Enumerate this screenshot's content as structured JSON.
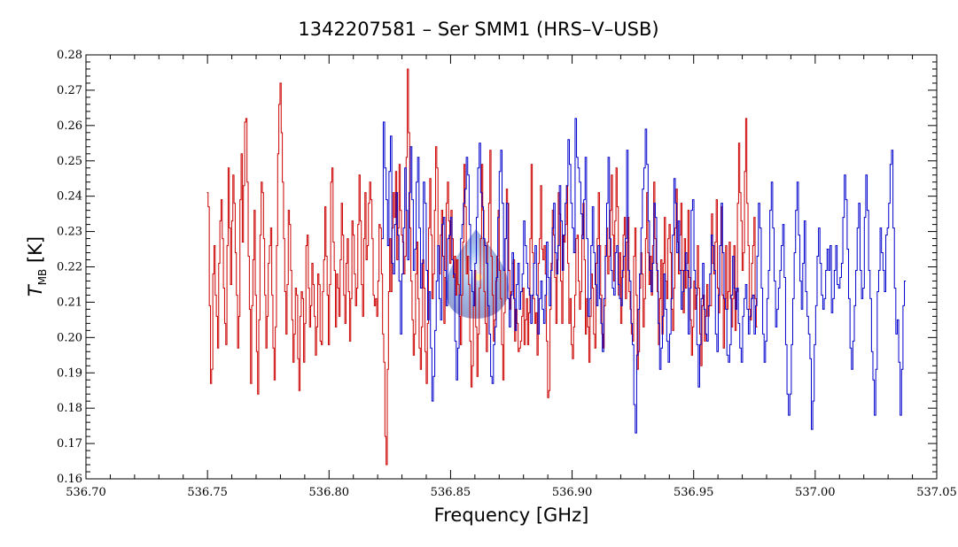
{
  "chart_data": {
    "type": "line",
    "title": "1342207581 – Ser SMM1 (HRS–V–USB)",
    "xlabel": "Frequency [GHz]",
    "ylabel": {
      "symbol": "T",
      "subscript": "MB",
      "unit": " [K]"
    },
    "xlim": [
      536.7,
      537.05
    ],
    "ylim": [
      0.16,
      0.28
    ],
    "xticks": [
      "536.70",
      "536.75",
      "536.80",
      "536.85",
      "536.90",
      "536.95",
      "537.00",
      "537.05"
    ],
    "yticks": [
      "0.16",
      "0.17",
      "0.18",
      "0.19",
      "0.20",
      "0.21",
      "0.22",
      "0.23",
      "0.24",
      "0.25",
      "0.26",
      "0.27",
      "0.28"
    ],
    "grid": false,
    "legend": "none",
    "step": true,
    "series": [
      {
        "color": "#cc0000",
        "x_start": 536.75,
        "x_end": 536.976,
        "values": [
          0.241,
          0.237,
          0.209,
          0.187,
          0.191,
          0.218,
          0.226,
          0.212,
          0.206,
          0.197,
          0.221,
          0.233,
          0.239,
          0.228,
          0.214,
          0.204,
          0.198,
          0.226,
          0.248,
          0.231,
          0.215,
          0.233,
          0.246,
          0.238,
          0.224,
          0.212,
          0.197,
          0.206,
          0.239,
          0.252,
          0.227,
          0.243,
          0.261,
          0.262,
          0.244,
          0.223,
          0.208,
          0.187,
          0.209,
          0.222,
          0.236,
          0.212,
          0.196,
          0.184,
          0.205,
          0.229,
          0.244,
          0.241,
          0.228,
          0.212,
          0.197,
          0.206,
          0.221,
          0.226,
          0.231,
          0.212,
          0.197,
          0.188,
          0.203,
          0.226,
          0.252,
          0.266,
          0.272,
          0.258,
          0.244,
          0.228,
          0.213,
          0.201,
          0.215,
          0.236,
          0.232,
          0.219,
          0.205,
          0.193,
          0.201,
          0.214,
          0.212,
          0.194,
          0.185,
          0.206,
          0.213,
          0.211,
          0.193,
          0.204,
          0.226,
          0.229,
          0.214,
          0.203,
          0.209,
          0.221,
          0.215,
          0.206,
          0.195,
          0.203,
          0.218,
          0.215,
          0.199,
          0.198,
          0.213,
          0.222,
          0.237,
          0.223,
          0.212,
          0.198,
          0.215,
          0.244,
          0.248,
          0.227,
          0.219,
          0.203,
          0.218,
          0.214,
          0.206,
          0.222,
          0.238,
          0.229,
          0.212,
          0.204,
          0.221,
          0.228,
          0.213,
          0.199,
          0.211,
          0.233,
          0.229,
          0.218,
          0.209,
          0.214,
          0.232,
          0.246,
          0.233,
          0.215,
          0.206,
          0.228,
          0.241,
          0.222,
          0.226,
          0.238,
          0.244,
          0.239,
          0.228,
          0.212,
          0.209,
          0.211,
          0.206,
          0.216,
          0.232,
          0.231,
          0.218,
          0.201,
          0.193,
          0.172,
          0.164,
          0.191,
          0.213,
          0.228,
          0.213,
          0.231,
          0.241,
          0.234,
          0.247,
          0.222,
          0.231,
          0.249,
          0.236,
          0.229,
          0.227,
          0.218,
          0.223,
          0.251,
          0.276,
          0.258,
          0.231,
          0.216,
          0.205,
          0.195,
          0.201,
          0.218,
          0.227,
          0.211,
          0.197,
          0.191,
          0.203,
          0.222,
          0.214,
          0.196,
          0.187,
          0.204,
          0.231,
          0.245,
          0.229,
          0.211,
          0.218,
          0.236,
          0.254,
          0.248,
          0.226,
          0.218,
          0.229,
          0.236,
          0.223,
          0.204,
          0.217,
          0.238,
          0.244,
          0.233,
          0.221,
          0.236,
          0.228,
          0.217,
          0.223,
          0.212,
          0.222,
          0.215,
          0.206,
          0.198,
          0.212,
          0.227,
          0.249,
          0.237,
          0.218,
          0.223,
          0.215,
          0.199,
          0.186,
          0.192,
          0.209,
          0.219,
          0.203,
          0.189,
          0.201,
          0.214,
          0.228,
          0.249,
          0.236,
          0.213,
          0.204,
          0.196,
          0.227,
          0.238,
          0.253,
          0.223,
          0.212,
          0.199,
          0.205,
          0.216,
          0.223,
          0.236,
          0.219,
          0.211,
          0.198,
          0.188,
          0.207,
          0.228,
          0.242,
          0.238,
          0.219,
          0.208,
          0.213,
          0.221,
          0.222,
          0.199,
          0.208,
          0.204,
          0.196,
          0.197,
          0.199,
          0.206,
          0.214,
          0.198,
          0.205,
          0.211,
          0.198,
          0.207,
          0.228,
          0.249,
          0.224,
          0.211,
          0.204,
          0.207,
          0.195,
          0.221,
          0.228,
          0.243,
          0.225,
          0.222,
          0.226,
          0.218,
          0.199,
          0.183,
          0.185,
          0.208,
          0.221,
          0.236,
          0.229,
          0.217,
          0.204,
          0.222,
          0.241,
          0.235,
          0.216,
          0.204,
          0.229,
          0.227,
          0.232,
          0.243,
          0.221,
          0.204,
          0.211,
          0.198,
          0.194,
          0.203,
          0.212,
          0.228,
          0.229,
          0.216,
          0.208,
          0.213,
          0.229,
          0.238,
          0.222,
          0.201,
          0.211,
          0.203,
          0.193,
          0.206,
          0.218,
          0.214,
          0.201,
          0.197,
          0.221,
          0.228,
          0.241,
          0.226,
          0.212,
          0.201,
          0.197,
          0.209,
          0.226,
          0.231,
          0.218,
          0.223,
          0.236,
          0.246,
          0.229,
          0.216,
          0.233,
          0.248,
          0.237,
          0.212,
          0.224,
          0.204,
          0.217,
          0.229,
          0.234,
          0.211,
          0.227,
          0.234,
          0.213,
          0.208,
          0.201,
          0.199,
          0.223,
          0.231,
          0.212,
          0.191,
          0.196,
          0.214,
          0.224,
          0.218,
          0.203,
          0.211,
          0.228,
          0.241,
          0.224,
          0.215,
          0.223,
          0.212,
          0.226,
          0.244,
          0.228,
          0.221,
          0.213,
          0.198,
          0.211,
          0.222,
          0.201,
          0.221,
          0.234,
          0.216,
          0.211,
          0.228,
          0.232,
          0.224,
          0.208,
          0.202,
          0.214,
          0.231,
          0.242,
          0.227,
          0.218,
          0.229,
          0.238,
          0.219,
          0.207,
          0.228,
          0.214,
          0.221,
          0.236,
          0.217,
          0.205,
          0.195,
          0.203,
          0.216,
          0.208,
          0.212,
          0.226,
          0.214,
          0.201,
          0.192,
          0.209,
          0.212,
          0.199,
          0.206,
          0.215,
          0.206,
          0.209,
          0.209,
          0.235,
          0.221,
          0.218,
          0.227,
          0.239,
          0.214,
          0.207,
          0.226,
          0.237,
          0.212,
          0.197,
          0.211,
          0.226,
          0.208,
          0.213,
          0.227,
          0.211,
          0.203,
          0.211,
          0.226,
          0.202,
          0.213,
          0.238,
          0.255,
          0.241,
          0.233,
          0.219,
          0.224,
          0.247,
          0.262,
          0.238,
          0.226,
          0.208,
          0.205,
          0.221,
          0.226,
          0.234,
          0.211,
          0.203
        ]
      },
      {
        "color": "#0000cc",
        "x_start": 536.822,
        "x_end": 537.037,
        "values": [
          0.228,
          0.261,
          0.248,
          0.239,
          0.226,
          0.247,
          0.257,
          0.221,
          0.218,
          0.232,
          0.241,
          0.229,
          0.216,
          0.201,
          0.218,
          0.231,
          0.248,
          0.236,
          0.222,
          0.241,
          0.254,
          0.239,
          0.219,
          0.225,
          0.244,
          0.251,
          0.231,
          0.214,
          0.221,
          0.244,
          0.238,
          0.219,
          0.205,
          0.213,
          0.197,
          0.182,
          0.189,
          0.202,
          0.216,
          0.226,
          0.211,
          0.205,
          0.232,
          0.234,
          0.219,
          0.209,
          0.228,
          0.229,
          0.234,
          0.222,
          0.218,
          0.199,
          0.188,
          0.197,
          0.212,
          0.228,
          0.232,
          0.238,
          0.242,
          0.251,
          0.246,
          0.232,
          0.219,
          0.213,
          0.209,
          0.221,
          0.234,
          0.248,
          0.255,
          0.241,
          0.237,
          0.228,
          0.226,
          0.221,
          0.209,
          0.201,
          0.189,
          0.187,
          0.198,
          0.203,
          0.217,
          0.234,
          0.247,
          0.253,
          0.238,
          0.219,
          0.228,
          0.238,
          0.211,
          0.203,
          0.212,
          0.224,
          0.211,
          0.202,
          0.215,
          0.221,
          0.208,
          0.213,
          0.218,
          0.233,
          0.226,
          0.221,
          0.214,
          0.212,
          0.204,
          0.212,
          0.221,
          0.226,
          0.212,
          0.201,
          0.211,
          0.216,
          0.208,
          0.204,
          0.212,
          0.227,
          0.217,
          0.209,
          0.219,
          0.231,
          0.238,
          0.224,
          0.218,
          0.226,
          0.243,
          0.233,
          0.219,
          0.229,
          0.238,
          0.243,
          0.256,
          0.249,
          0.238,
          0.231,
          0.224,
          0.262,
          0.251,
          0.248,
          0.244,
          0.235,
          0.228,
          0.239,
          0.251,
          0.228,
          0.206,
          0.211,
          0.226,
          0.237,
          0.224,
          0.215,
          0.209,
          0.226,
          0.211,
          0.204,
          0.196,
          0.211,
          0.223,
          0.238,
          0.251,
          0.228,
          0.219,
          0.214,
          0.212,
          0.224,
          0.226,
          0.215,
          0.211,
          0.209,
          0.219,
          0.223,
          0.228,
          0.253,
          0.219,
          0.216,
          0.204,
          0.198,
          0.181,
          0.173,
          0.195,
          0.208,
          0.218,
          0.231,
          0.242,
          0.248,
          0.259,
          0.249,
          0.233,
          0.219,
          0.213,
          0.221,
          0.238,
          0.234,
          0.219,
          0.204,
          0.191,
          0.197,
          0.206,
          0.218,
          0.208,
          0.199,
          0.193,
          0.201,
          0.211,
          0.229,
          0.245,
          0.238,
          0.224,
          0.233,
          0.219,
          0.208,
          0.213,
          0.219,
          0.224,
          0.219,
          0.201,
          0.214,
          0.236,
          0.239,
          0.219,
          0.214,
          0.198,
          0.186,
          0.198,
          0.211,
          0.221,
          0.208,
          0.201,
          0.199,
          0.209,
          0.218,
          0.229,
          0.226,
          0.219,
          0.201,
          0.196,
          0.212,
          0.226,
          0.238,
          0.224,
          0.211,
          0.208,
          0.195,
          0.193,
          0.198,
          0.212,
          0.223,
          0.214,
          0.208,
          0.214,
          0.204,
          0.197,
          0.193,
          0.206,
          0.211,
          0.215,
          0.208,
          0.201,
          0.206,
          0.211,
          0.212,
          0.201,
          0.209,
          0.223,
          0.238,
          0.231,
          0.214,
          0.201,
          0.193,
          0.199,
          0.211,
          0.219,
          0.236,
          0.244,
          0.231,
          0.216,
          0.203,
          0.208,
          0.214,
          0.219,
          0.226,
          0.232,
          0.217,
          0.198,
          0.184,
          0.178,
          0.184,
          0.198,
          0.211,
          0.224,
          0.236,
          0.244,
          0.229,
          0.216,
          0.208,
          0.221,
          0.233,
          0.213,
          0.206,
          0.201,
          0.194,
          0.174,
          0.182,
          0.198,
          0.209,
          0.223,
          0.231,
          0.221,
          0.212,
          0.208,
          0.211,
          0.219,
          0.225,
          0.219,
          0.226,
          0.207,
          0.211,
          0.219,
          0.226,
          0.215,
          0.214,
          0.217,
          0.221,
          0.234,
          0.246,
          0.239,
          0.225,
          0.211,
          0.197,
          0.191,
          0.199,
          0.209,
          0.219,
          0.231,
          0.238,
          0.219,
          0.211,
          0.214,
          0.234,
          0.246,
          0.236,
          0.219,
          0.211,
          0.196,
          0.188,
          0.178,
          0.191,
          0.213,
          0.219,
          0.231,
          0.224,
          0.219,
          0.213,
          0.229,
          0.231,
          0.238,
          0.249,
          0.253,
          0.231,
          0.214,
          0.201,
          0.205,
          0.193,
          0.178,
          0.191,
          0.209,
          0.216
        ]
      }
    ]
  }
}
